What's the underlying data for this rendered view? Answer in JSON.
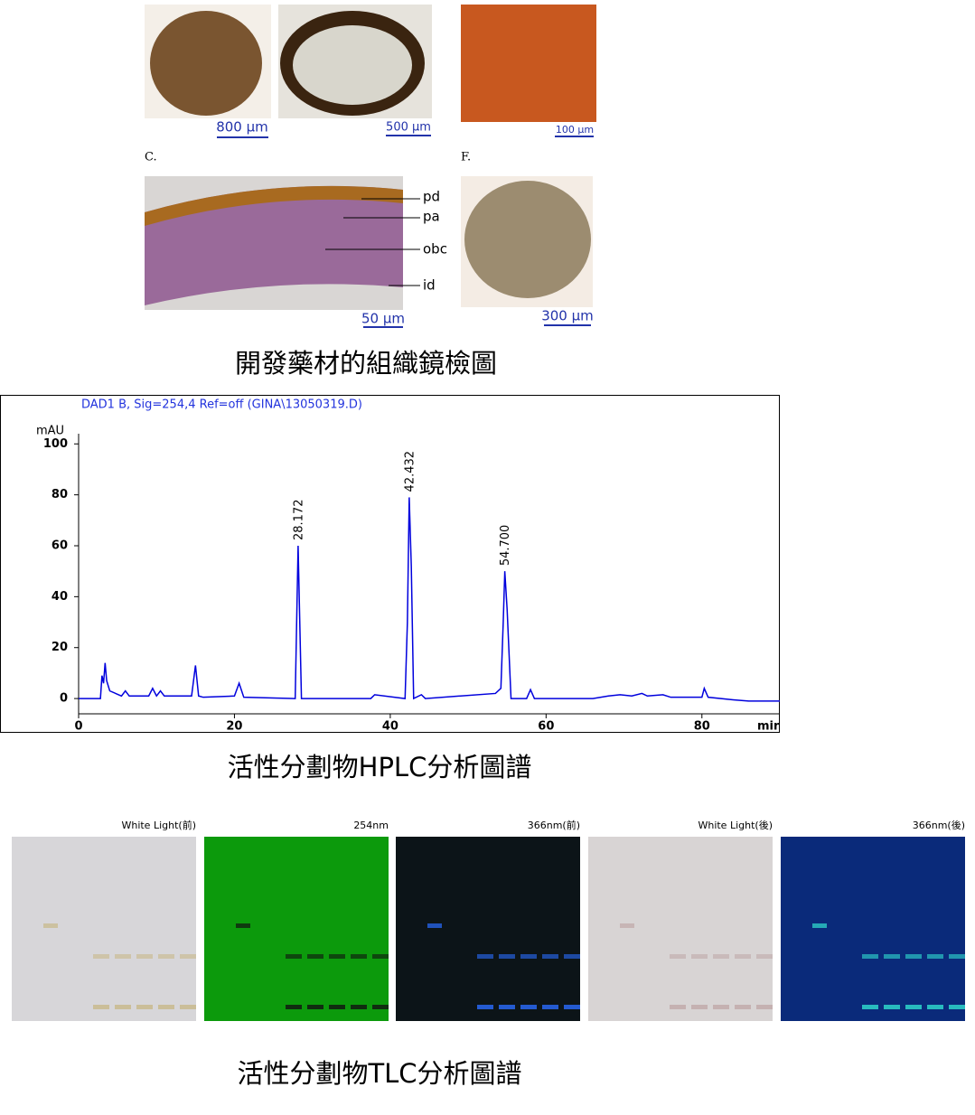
{
  "micrographs": {
    "scale_labels": [
      "800 µm",
      "500 µm",
      "100 µm",
      "50 µm",
      "300 µm"
    ],
    "panel_labels": [
      "C.",
      "F."
    ],
    "layer_labels": [
      "pd",
      "pa",
      "obc",
      "id"
    ],
    "caption": "開發藥材的組織鏡檢圖"
  },
  "chart_data": {
    "type": "line",
    "title": "DAD1 B, Sig=254,4 Ref=off (GINA\\13050319.D)",
    "y_label": "mAU",
    "x_label": "min",
    "x": [
      0,
      2.8,
      3.0,
      3.2,
      3.4,
      3.6,
      4,
      5.5,
      6,
      6.5,
      9,
      9.5,
      10,
      10.5,
      11,
      14.5,
      15,
      15.4,
      16,
      20,
      20.6,
      21.2,
      27.8,
      28.172,
      28.6,
      37.5,
      38,
      41.9,
      42.2,
      42.432,
      42.7,
      43,
      44,
      44.5,
      53.5,
      54.2,
      54.5,
      54.7,
      55,
      55.5,
      57.5,
      58,
      58.5,
      66,
      68,
      69.5,
      71,
      72.3,
      73,
      75,
      76,
      80,
      80.3,
      80.8,
      84,
      86,
      90
    ],
    "series": [
      {
        "color": "#0000dd",
        "values": [
          0,
          0,
          9,
          6,
          14,
          7,
          3,
          1,
          3,
          1,
          1,
          4,
          1,
          3,
          1,
          1,
          13,
          1,
          0.5,
          1,
          6,
          0.5,
          0,
          60,
          0,
          0,
          1.5,
          0,
          30,
          79,
          52,
          0,
          1.5,
          0,
          2,
          4,
          30,
          50,
          35,
          0,
          0,
          3.5,
          0,
          0,
          1,
          1.5,
          1,
          2,
          1,
          1.5,
          0.5,
          0.5,
          4,
          0.5,
          -0.5,
          -1,
          -1
        ]
      }
    ],
    "peaks": [
      {
        "x": 28.172,
        "y": 60,
        "label": "28.172"
      },
      {
        "x": 42.432,
        "y": 79,
        "label": "42.432"
      },
      {
        "x": 54.7,
        "y": 50,
        "label": "54.700"
      }
    ],
    "xlim": [
      0,
      90
    ],
    "ylim": [
      -6,
      104
    ],
    "xticks": [
      0,
      20,
      40,
      60,
      80
    ],
    "yticks": [
      0,
      20,
      40,
      60,
      80,
      100
    ],
    "caption": "活性分劃物HPLC分析圖譜"
  },
  "tlc": {
    "plates": [
      "White Light(前)",
      "254nm",
      "366nm(前)",
      "White Light(後)",
      "366nm(後)"
    ],
    "caption": "活性分劃物TLC分析圖譜"
  }
}
